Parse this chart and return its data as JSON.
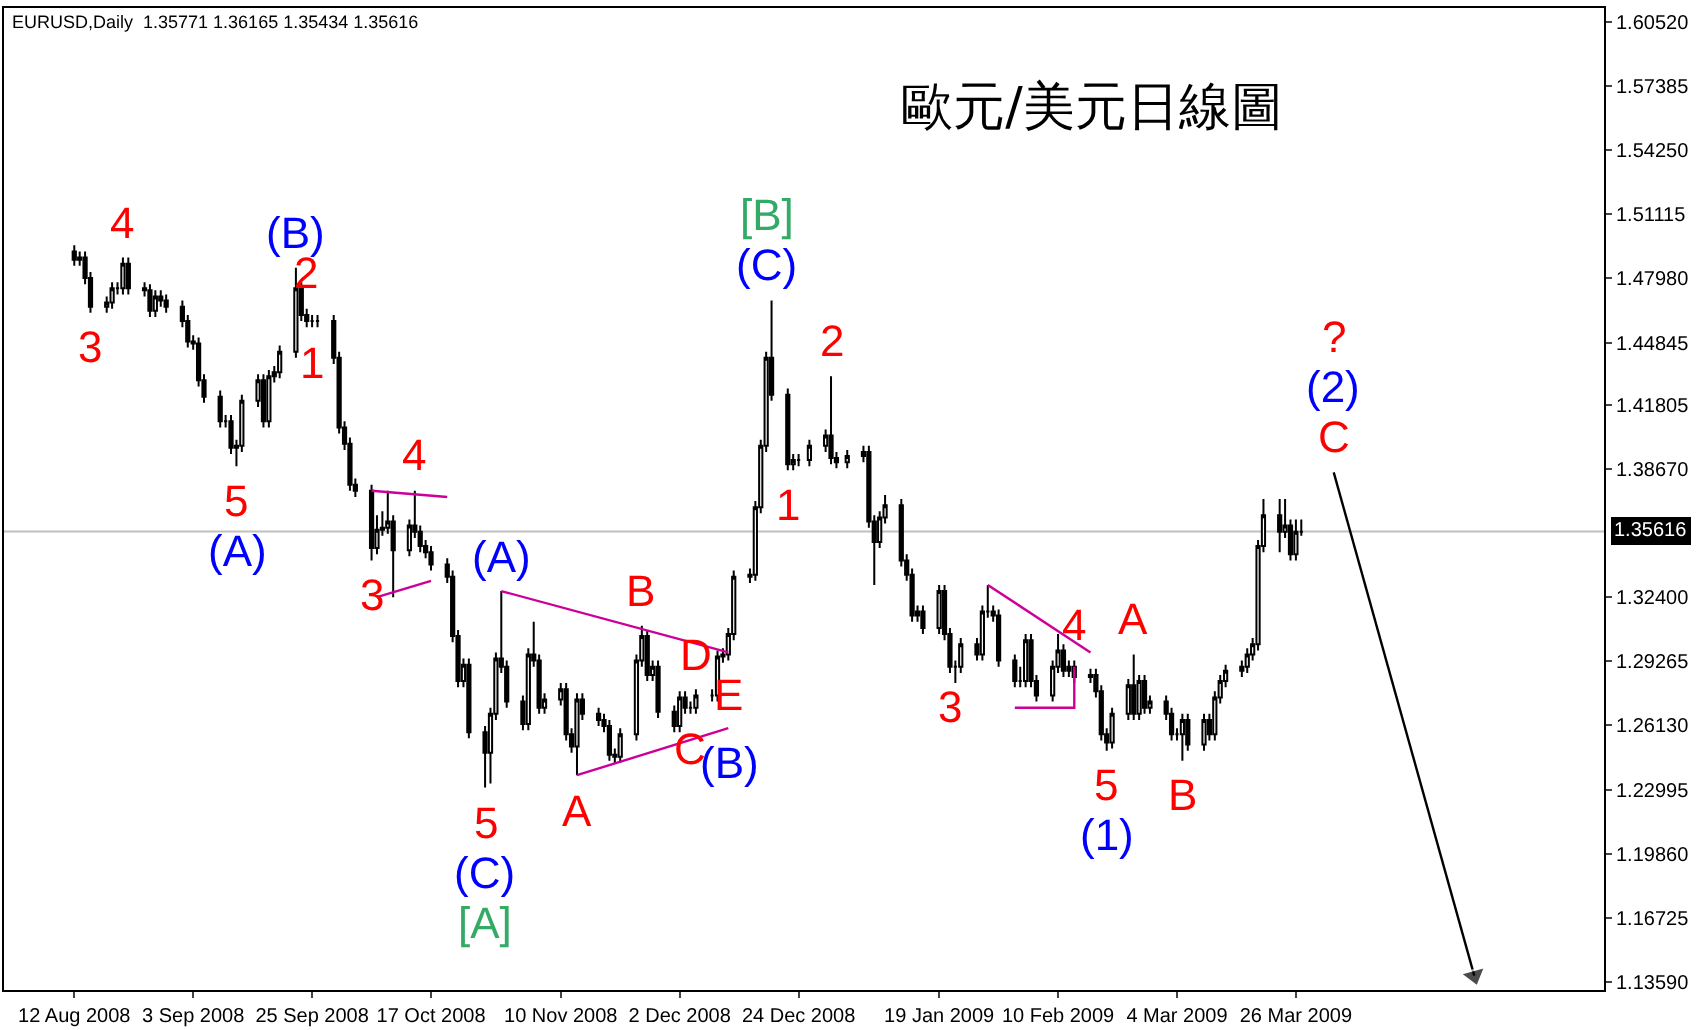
{
  "chart_data": {
    "type": "candlestick",
    "title": "歐元/美元日線圖",
    "subtitle": "EURUSD,Daily  1.35771 1.36165 1.35434 1.35616",
    "color": "#000000",
    "x": [
      "2008-08-12",
      "2008-08-13",
      "2008-08-14",
      "2008-08-15",
      "2008-08-18",
      "2008-08-19",
      "2008-08-20",
      "2008-08-21",
      "2008-08-22",
      "2008-08-25",
      "2008-08-26",
      "2008-08-27",
      "2008-08-28",
      "2008-08-29",
      "2008-09-01",
      "2008-09-02",
      "2008-09-03",
      "2008-09-04",
      "2008-09-05",
      "2008-09-08",
      "2008-09-09",
      "2008-09-10",
      "2008-09-11",
      "2008-09-12",
      "2008-09-15",
      "2008-09-16",
      "2008-09-17",
      "2008-09-18",
      "2008-09-19",
      "2008-09-22",
      "2008-09-23",
      "2008-09-24",
      "2008-09-25",
      "2008-09-26",
      "2008-09-29",
      "2008-09-30",
      "2008-10-01",
      "2008-10-02",
      "2008-10-03",
      "2008-10-06",
      "2008-10-07",
      "2008-10-08",
      "2008-10-09",
      "2008-10-10",
      "2008-10-13",
      "2008-10-14",
      "2008-10-15",
      "2008-10-16",
      "2008-10-17",
      "2008-10-20",
      "2008-10-21",
      "2008-10-22",
      "2008-10-23",
      "2008-10-24",
      "2008-10-27",
      "2008-10-28",
      "2008-10-29",
      "2008-10-30",
      "2008-10-31",
      "2008-11-03",
      "2008-11-04",
      "2008-11-05",
      "2008-11-06",
      "2008-11-07",
      "2008-11-10",
      "2008-11-11",
      "2008-11-12",
      "2008-11-13",
      "2008-11-14",
      "2008-11-17",
      "2008-11-18",
      "2008-11-19",
      "2008-11-20",
      "2008-11-21",
      "2008-11-24",
      "2008-11-25",
      "2008-11-26",
      "2008-11-27",
      "2008-11-28",
      "2008-12-01",
      "2008-12-02",
      "2008-12-03",
      "2008-12-04",
      "2008-12-05",
      "2008-12-08",
      "2008-12-09",
      "2008-12-10",
      "2008-12-11",
      "2008-12-12",
      "2008-12-15",
      "2008-12-16",
      "2008-12-17",
      "2008-12-18",
      "2008-12-19",
      "2008-12-22",
      "2008-12-23",
      "2008-12-24",
      "2008-12-26",
      "2008-12-29",
      "2008-12-30",
      "2008-12-31",
      "2009-01-02",
      "2009-01-05",
      "2009-01-06",
      "2009-01-07",
      "2009-01-08",
      "2009-01-09",
      "2009-01-12",
      "2009-01-13",
      "2009-01-14",
      "2009-01-15",
      "2009-01-16",
      "2009-01-19",
      "2009-01-20",
      "2009-01-21",
      "2009-01-22",
      "2009-01-23",
      "2009-01-26",
      "2009-01-27",
      "2009-01-28",
      "2009-01-29",
      "2009-01-30",
      "2009-02-02",
      "2009-02-03",
      "2009-02-04",
      "2009-02-05",
      "2009-02-06",
      "2009-02-09",
      "2009-02-10",
      "2009-02-11",
      "2009-02-12",
      "2009-02-13",
      "2009-02-16",
      "2009-02-17",
      "2009-02-18",
      "2009-02-19",
      "2009-02-20",
      "2009-02-23",
      "2009-02-24",
      "2009-02-25",
      "2009-02-26",
      "2009-02-27",
      "2009-03-02",
      "2009-03-03",
      "2009-03-04",
      "2009-03-05",
      "2009-03-06",
      "2009-03-09",
      "2009-03-10",
      "2009-03-11",
      "2009-03-12",
      "2009-03-13",
      "2009-03-16",
      "2009-03-17",
      "2009-03-18",
      "2009-03-19",
      "2009-03-20",
      "2009-03-23",
      "2009-03-24",
      "2009-03-25",
      "2009-03-26",
      "2009-03-27"
    ],
    "ohlc": [
      [
        1.493,
        1.496,
        1.486,
        1.489
      ],
      [
        1.489,
        1.493,
        1.486,
        1.49
      ],
      [
        1.49,
        1.493,
        1.477,
        1.48
      ],
      [
        1.48,
        1.483,
        1.463,
        1.466
      ],
      [
        1.466,
        1.471,
        1.463,
        1.468
      ],
      [
        1.468,
        1.478,
        1.465,
        1.475
      ],
      [
        1.475,
        1.478,
        1.472,
        1.475
      ],
      [
        1.475,
        1.49,
        1.472,
        1.487
      ],
      [
        1.487,
        1.49,
        1.472,
        1.475
      ],
      [
        1.475,
        1.478,
        1.471,
        1.474
      ],
      [
        1.474,
        1.477,
        1.461,
        1.464
      ],
      [
        1.464,
        1.474,
        1.461,
        1.471
      ],
      [
        1.471,
        1.474,
        1.466,
        1.469
      ],
      [
        1.469,
        1.472,
        1.463,
        1.466
      ],
      [
        1.466,
        1.469,
        1.456,
        1.459
      ],
      [
        1.459,
        1.462,
        1.446,
        1.449
      ],
      [
        1.449,
        1.452,
        1.445,
        1.448
      ],
      [
        1.448,
        1.451,
        1.427,
        1.43
      ],
      [
        1.43,
        1.433,
        1.419,
        1.422
      ],
      [
        1.422,
        1.425,
        1.407,
        1.41
      ],
      [
        1.41,
        1.413,
        1.407,
        1.41
      ],
      [
        1.41,
        1.413,
        1.394,
        1.397
      ],
      [
        1.397,
        1.401,
        1.388,
        1.398
      ],
      [
        1.398,
        1.423,
        1.395,
        1.42
      ],
      [
        1.42,
        1.433,
        1.417,
        1.43
      ],
      [
        1.43,
        1.433,
        1.407,
        1.41
      ],
      [
        1.41,
        1.435,
        1.407,
        1.432
      ],
      [
        1.432,
        1.437,
        1.429,
        1.434
      ],
      [
        1.434,
        1.447,
        1.431,
        1.444
      ],
      [
        1.444,
        1.485,
        1.441,
        1.475
      ],
      [
        1.475,
        1.478,
        1.459,
        1.462
      ],
      [
        1.462,
        1.465,
        1.456,
        1.459
      ],
      [
        1.459,
        1.462,
        1.456,
        1.459
      ],
      [
        1.459,
        1.462,
        1.456,
        1.459
      ],
      [
        1.459,
        1.462,
        1.438,
        1.441
      ],
      [
        1.441,
        1.444,
        1.404,
        1.407
      ],
      [
        1.407,
        1.41,
        1.396,
        1.399
      ],
      [
        1.399,
        1.402,
        1.376,
        1.379
      ],
      [
        1.379,
        1.382,
        1.373,
        1.376
      ],
      [
        1.376,
        1.379,
        1.342,
        1.348
      ],
      [
        1.348,
        1.364,
        1.345,
        1.357
      ],
      [
        1.357,
        1.366,
        1.354,
        1.358
      ],
      [
        1.358,
        1.376,
        1.355,
        1.361
      ],
      [
        1.361,
        1.364,
        1.324,
        1.347
      ],
      [
        1.347,
        1.362,
        1.344,
        1.359
      ],
      [
        1.359,
        1.376,
        1.353,
        1.356
      ],
      [
        1.356,
        1.359,
        1.346,
        1.349
      ],
      [
        1.349,
        1.352,
        1.343,
        1.346
      ],
      [
        1.346,
        1.349,
        1.337,
        1.34
      ],
      [
        1.34,
        1.343,
        1.331,
        1.334
      ],
      [
        1.334,
        1.337,
        1.302,
        1.305
      ],
      [
        1.305,
        1.308,
        1.28,
        1.283
      ],
      [
        1.283,
        1.294,
        1.28,
        1.291
      ],
      [
        1.291,
        1.294,
        1.255,
        1.258
      ],
      [
        1.258,
        1.261,
        1.231,
        1.248
      ],
      [
        1.248,
        1.27,
        1.233,
        1.267
      ],
      [
        1.267,
        1.297,
        1.264,
        1.294
      ],
      [
        1.294,
        1.327,
        1.287,
        1.29
      ],
      [
        1.29,
        1.293,
        1.27,
        1.273
      ],
      [
        1.273,
        1.276,
        1.259,
        1.262
      ],
      [
        1.262,
        1.299,
        1.259,
        1.296
      ],
      [
        1.296,
        1.312,
        1.29,
        1.293
      ],
      [
        1.293,
        1.296,
        1.267,
        1.27
      ],
      [
        1.27,
        1.277,
        1.267,
        1.274
      ],
      [
        1.274,
        1.282,
        1.271,
        1.279
      ],
      [
        1.279,
        1.282,
        1.254,
        1.257
      ],
      [
        1.257,
        1.26,
        1.248,
        1.251
      ],
      [
        1.251,
        1.277,
        1.237,
        1.274
      ],
      [
        1.274,
        1.277,
        1.264,
        1.267
      ],
      [
        1.267,
        1.27,
        1.261,
        1.264
      ],
      [
        1.264,
        1.267,
        1.258,
        1.261
      ],
      [
        1.261,
        1.264,
        1.244,
        1.247
      ],
      [
        1.247,
        1.25,
        1.243,
        1.246
      ],
      [
        1.246,
        1.26,
        1.243,
        1.257
      ],
      [
        1.257,
        1.296,
        1.254,
        1.293
      ],
      [
        1.293,
        1.31,
        1.29,
        1.305
      ],
      [
        1.305,
        1.308,
        1.283,
        1.286
      ],
      [
        1.286,
        1.293,
        1.283,
        1.29
      ],
      [
        1.29,
        1.293,
        1.265,
        1.268
      ],
      [
        1.268,
        1.271,
        1.258,
        1.261
      ],
      [
        1.261,
        1.278,
        1.258,
        1.275
      ],
      [
        1.275,
        1.278,
        1.267,
        1.27
      ],
      [
        1.27,
        1.273,
        1.267,
        1.27
      ],
      [
        1.27,
        1.279,
        1.267,
        1.276
      ],
      [
        1.276,
        1.279,
        1.273,
        1.276
      ],
      [
        1.276,
        1.298,
        1.273,
        1.295
      ],
      [
        1.295,
        1.299,
        1.292,
        1.296
      ],
      [
        1.296,
        1.309,
        1.293,
        1.306
      ],
      [
        1.306,
        1.337,
        1.303,
        1.334
      ],
      [
        1.334,
        1.338,
        1.331,
        1.335
      ],
      [
        1.335,
        1.371,
        1.332,
        1.368
      ],
      [
        1.368,
        1.401,
        1.365,
        1.398
      ],
      [
        1.398,
        1.444,
        1.395,
        1.441
      ],
      [
        1.441,
        1.469,
        1.42,
        1.423
      ],
      [
        1.423,
        1.426,
        1.386,
        1.389
      ],
      [
        1.389,
        1.394,
        1.386,
        1.391
      ],
      [
        1.391,
        1.394,
        1.388,
        1.391
      ],
      [
        1.391,
        1.401,
        1.388,
        1.398
      ],
      [
        1.398,
        1.406,
        1.395,
        1.403
      ],
      [
        1.403,
        1.432,
        1.389,
        1.392
      ],
      [
        1.392,
        1.395,
        1.387,
        1.39
      ],
      [
        1.39,
        1.396,
        1.387,
        1.393
      ],
      [
        1.393,
        1.398,
        1.39,
        1.395
      ],
      [
        1.395,
        1.398,
        1.358,
        1.361
      ],
      [
        1.361,
        1.364,
        1.33,
        1.351
      ],
      [
        1.351,
        1.366,
        1.348,
        1.363
      ],
      [
        1.363,
        1.374,
        1.36,
        1.369
      ],
      [
        1.369,
        1.372,
        1.339,
        1.342
      ],
      [
        1.342,
        1.345,
        1.332,
        1.335
      ],
      [
        1.335,
        1.338,
        1.312,
        1.315
      ],
      [
        1.315,
        1.32,
        1.312,
        1.317
      ],
      [
        1.317,
        1.32,
        1.306,
        1.309
      ],
      [
        1.309,
        1.33,
        1.306,
        1.327
      ],
      [
        1.327,
        1.33,
        1.303,
        1.306
      ],
      [
        1.306,
        1.309,
        1.287,
        1.29
      ],
      [
        1.29,
        1.293,
        1.282,
        1.29
      ],
      [
        1.29,
        1.304,
        1.287,
        1.301
      ],
      [
        1.301,
        1.304,
        1.293,
        1.296
      ],
      [
        1.296,
        1.32,
        1.293,
        1.317
      ],
      [
        1.317,
        1.33,
        1.314,
        1.317
      ],
      [
        1.317,
        1.32,
        1.312,
        1.315
      ],
      [
        1.315,
        1.318,
        1.29,
        1.293
      ],
      [
        1.293,
        1.296,
        1.28,
        1.283
      ],
      [
        1.283,
        1.29,
        1.28,
        1.283
      ],
      [
        1.283,
        1.306,
        1.28,
        1.303
      ],
      [
        1.303,
        1.306,
        1.28,
        1.283
      ],
      [
        1.283,
        1.286,
        1.273,
        1.276
      ],
      [
        1.276,
        1.293,
        1.273,
        1.29
      ],
      [
        1.29,
        1.306,
        1.287,
        1.298
      ],
      [
        1.298,
        1.301,
        1.285,
        1.288
      ],
      [
        1.288,
        1.293,
        1.285,
        1.29
      ],
      [
        1.29,
        1.293,
        1.282,
        1.285
      ],
      [
        1.285,
        1.289,
        1.282,
        1.286
      ],
      [
        1.286,
        1.289,
        1.275,
        1.278
      ],
      [
        1.278,
        1.281,
        1.254,
        1.257
      ],
      [
        1.257,
        1.26,
        1.249,
        1.253
      ],
      [
        1.253,
        1.27,
        1.25,
        1.267
      ],
      [
        1.267,
        1.284,
        1.264,
        1.281
      ],
      [
        1.281,
        1.296,
        1.264,
        1.267
      ],
      [
        1.267,
        1.286,
        1.264,
        1.283
      ],
      [
        1.283,
        1.286,
        1.267,
        1.27
      ],
      [
        1.27,
        1.276,
        1.267,
        1.273
      ],
      [
        1.273,
        1.276,
        1.264,
        1.267
      ],
      [
        1.267,
        1.27,
        1.254,
        1.257
      ],
      [
        1.257,
        1.26,
        1.254,
        1.257
      ],
      [
        1.257,
        1.267,
        1.244,
        1.264
      ],
      [
        1.264,
        1.267,
        1.249,
        1.252
      ],
      [
        1.252,
        1.267,
        1.249,
        1.264
      ],
      [
        1.264,
        1.267,
        1.254,
        1.257
      ],
      [
        1.257,
        1.278,
        1.254,
        1.275
      ],
      [
        1.275,
        1.286,
        1.272,
        1.283
      ],
      [
        1.283,
        1.291,
        1.28,
        1.288
      ],
      [
        1.288,
        1.293,
        1.285,
        1.29
      ],
      [
        1.29,
        1.299,
        1.287,
        1.296
      ],
      [
        1.296,
        1.304,
        1.293,
        1.301
      ],
      [
        1.301,
        1.352,
        1.298,
        1.349
      ],
      [
        1.349,
        1.372,
        1.346,
        1.364
      ],
      [
        1.364,
        1.372,
        1.346,
        1.356
      ],
      [
        1.356,
        1.372,
        1.353,
        1.359
      ],
      [
        1.359,
        1.362,
        1.342,
        1.345
      ],
      [
        1.345,
        1.362,
        1.342,
        1.356
      ],
      [
        1.356,
        1.362,
        1.354,
        1.356
      ]
    ],
    "series": [
      {
        "type": "line",
        "color": "#cc0099",
        "x": [
          "2008-10-06",
          "2008-10-20"
        ],
        "values": [
          1.376,
          1.373
        ]
      },
      {
        "type": "line",
        "color": "#cc0099",
        "x": [
          "2008-10-07",
          "2008-10-17"
        ],
        "values": [
          1.324,
          1.332
        ]
      },
      {
        "type": "line",
        "color": "#cc0099",
        "x": [
          "2008-10-30",
          "2008-12-11"
        ],
        "values": [
          1.327,
          1.297
        ]
      },
      {
        "type": "line",
        "color": "#cc0099",
        "x": [
          "2008-11-13",
          "2008-12-11"
        ],
        "values": [
          1.237,
          1.26
        ]
      },
      {
        "type": "line",
        "color": "#cc0099",
        "x": [
          "2009-01-28",
          "2009-02-16"
        ],
        "values": [
          1.33,
          1.297
        ]
      },
      {
        "type": "line",
        "color": "#cc0099",
        "x": [
          "2009-02-02",
          "2009-02-13",
          "2009-02-13"
        ],
        "values": [
          1.27,
          1.27,
          1.29
        ]
      },
      {
        "type": "line",
        "color": "#000000",
        "marker": "triangle",
        "x": [
          "2009-04-02",
          "2009-04-28"
        ],
        "values": [
          1.385,
          1.139
        ]
      }
    ],
    "annotations": [
      {
        "text": "4",
        "x": "2008-08-21",
        "y": 1.49
      },
      {
        "text": "3",
        "x": "2008-08-15",
        "y": 1.463
      },
      {
        "text": "(B)",
        "x": "2008-09-22",
        "y": 1.485
      },
      {
        "text": "2",
        "x": "2008-09-24",
        "y": 1.465
      },
      {
        "text": "1",
        "x": "2008-09-25",
        "y": 1.456
      },
      {
        "text": "5",
        "x": "2008-09-11",
        "y": 1.388
      },
      {
        "text": "(A)",
        "x": "2008-09-11",
        "y": 1.388
      },
      {
        "text": "4",
        "x": "2008-10-14",
        "y": 1.376
      },
      {
        "text": "3",
        "x": "2008-10-06",
        "y": 1.342
      },
      {
        "text": "(A)",
        "x": "2008-10-30",
        "y": 1.327
      },
      {
        "text": "5",
        "x": "2008-10-27",
        "y": 1.231
      },
      {
        "text": "(C)",
        "x": "2008-10-27",
        "y": 1.231
      },
      {
        "text": "[A]",
        "x": "2008-10-27",
        "y": 1.231
      },
      {
        "text": "A",
        "x": "2008-11-13",
        "y": 1.237
      },
      {
        "text": "B",
        "x": "2008-11-25",
        "y": 1.31
      },
      {
        "text": "C",
        "x": "2008-12-04",
        "y": 1.267
      },
      {
        "text": "D",
        "x": "2008-12-05",
        "y": 1.279
      },
      {
        "text": "E",
        "x": "2008-12-11",
        "y": 1.293
      },
      {
        "text": "(B)",
        "x": "2008-12-11",
        "y": 1.26
      },
      {
        "text": "(C)",
        "x": "2008-12-18",
        "y": 1.469
      },
      {
        "text": "[B]",
        "x": "2008-12-18",
        "y": 1.469
      },
      {
        "text": "2",
        "x": "2008-12-30",
        "y": 1.432
      },
      {
        "text": "1",
        "x": "2008-12-22",
        "y": 1.386
      },
      {
        "text": "3",
        "x": "2009-01-21",
        "y": 1.287
      },
      {
        "text": "4",
        "x": "2009-02-13",
        "y": 1.293
      },
      {
        "text": "A",
        "x": "2009-02-24",
        "y": 1.296
      },
      {
        "text": "5",
        "x": "2009-02-19",
        "y": 1.249
      },
      {
        "text": "(1)",
        "x": "2009-02-19",
        "y": 1.249
      },
      {
        "text": "B",
        "x": "2009-03-05",
        "y": 1.244
      },
      {
        "text": "C",
        "x": "2009-04-02",
        "y": 1.385
      },
      {
        "text": "(2)",
        "x": "2009-04-02",
        "y": 1.385
      },
      {
        "text": "?",
        "x": "2009-04-02",
        "y": 1.385
      }
    ],
    "xlim": [
      "2008-07-30",
      "2009-05-22"
    ],
    "xticks": [
      {
        "value": "2008-08-12",
        "label": "12 Aug 2008"
      },
      {
        "value": "2008-09-03",
        "label": "3 Sep 2008"
      },
      {
        "value": "2008-09-25",
        "label": "25 Sep 2008"
      },
      {
        "value": "2008-10-17",
        "label": "17 Oct 2008"
      },
      {
        "value": "2008-11-10",
        "label": "10 Nov 2008"
      },
      {
        "value": "2008-12-02",
        "label": "2 Dec 2008"
      },
      {
        "value": "2008-12-24",
        "label": "24 Dec 2008"
      },
      {
        "value": "2009-01-19",
        "label": "19 Jan 2009"
      },
      {
        "value": "2009-02-10",
        "label": "10 Feb 2009"
      },
      {
        "value": "2009-03-04",
        "label": "4 Mar 2009"
      },
      {
        "value": "2009-03-26",
        "label": "26 Mar 2009"
      }
    ],
    "ylim": [
      1.132,
      1.612
    ],
    "yticks": [
      {
        "value": 1.6052,
        "label": "1.60520"
      },
      1.57385,
      {
        "value": 1.5425,
        "label": "1.54250"
      },
      1.51115,
      {
        "value": 1.4798,
        "label": "1.47980"
      },
      1.44845,
      1.41805,
      {
        "value": 1.3867,
        "label": "1.38670"
      },
      {
        "value": 1.324,
        "label": "1.32400"
      },
      1.29265,
      {
        "value": 1.2613,
        "label": "1.26130"
      },
      1.22995,
      {
        "value": 1.1986,
        "label": "1.19860"
      },
      1.16725,
      {
        "value": 1.1359,
        "label": "1.13590"
      }
    ],
    "ref_lines": [
      {
        "axis": "y",
        "value": 1.35616,
        "label": "1.35616",
        "color": "#c0c0c0"
      }
    ]
  }
}
